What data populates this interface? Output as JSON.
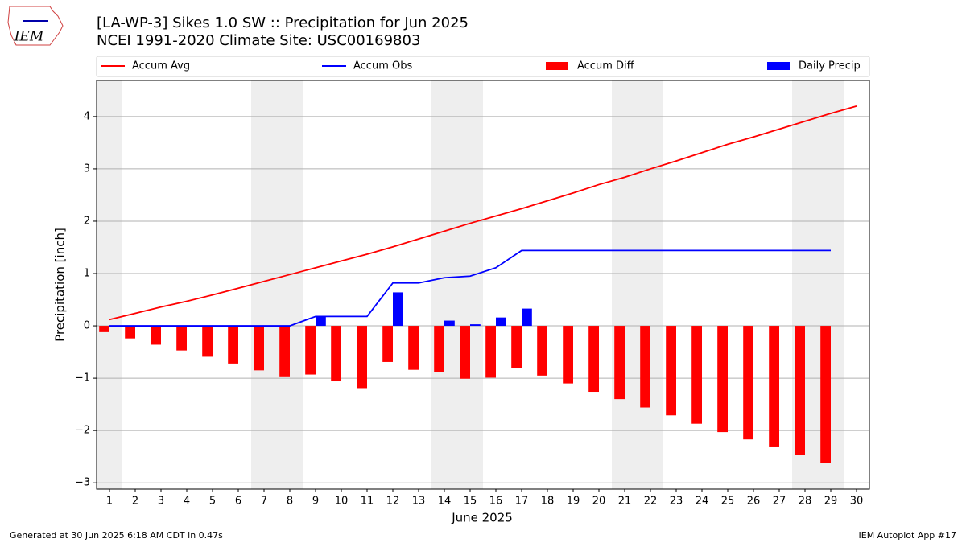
{
  "chart_data": {
    "type": "bar_line",
    "title": "[LA-WP-3] Sikes 1.0 SW :: Precipitation for Jun 2025",
    "subtitle": "NCEI 1991-2020 Climate Site: USC00169803",
    "xlabel": "June 2025",
    "ylabel": "Precipitation [inch]",
    "logo_text": "IEM",
    "footer_left": "Generated at 30 Jun 2025 6:18 AM CDT in 0.47s",
    "footer_right": "IEM Autoplot App #17",
    "x": [
      1,
      2,
      3,
      4,
      5,
      6,
      7,
      8,
      9,
      10,
      11,
      12,
      13,
      14,
      15,
      16,
      17,
      18,
      19,
      20,
      21,
      22,
      23,
      24,
      25,
      26,
      27,
      28,
      29,
      30
    ],
    "series": [
      {
        "name": "Accum Avg",
        "kind": "line",
        "color": "#ff0000",
        "values": [
          0.12,
          0.24,
          0.36,
          0.47,
          0.59,
          0.72,
          0.85,
          0.98,
          1.11,
          1.24,
          1.37,
          1.51,
          1.66,
          1.81,
          1.96,
          2.1,
          2.24,
          2.39,
          2.54,
          2.7,
          2.84,
          3.0,
          3.15,
          3.31,
          3.47,
          3.61,
          3.76,
          3.91,
          4.06,
          4.2
        ]
      },
      {
        "name": "Accum Obs",
        "kind": "line",
        "color": "#0000ff",
        "values": [
          0,
          0,
          0,
          0,
          0,
          0,
          0,
          0,
          0.18,
          0.18,
          0.18,
          0.82,
          0.82,
          0.92,
          0.95,
          1.11,
          1.44,
          1.44,
          1.44,
          1.44,
          1.44,
          1.44,
          1.44,
          1.44,
          1.44,
          1.44,
          1.44,
          1.44,
          1.44,
          null
        ]
      },
      {
        "name": "Accum Diff",
        "kind": "bar",
        "color": "#ff0000",
        "values": [
          -0.12,
          -0.24,
          -0.36,
          -0.47,
          -0.59,
          -0.72,
          -0.85,
          -0.98,
          -0.93,
          -1.06,
          -1.19,
          -0.69,
          -0.84,
          -0.89,
          -1.01,
          -0.99,
          -0.8,
          -0.95,
          -1.1,
          -1.26,
          -1.4,
          -1.56,
          -1.71,
          -1.87,
          -2.03,
          -2.17,
          -2.32,
          -2.47,
          -2.62,
          null
        ]
      },
      {
        "name": "Daily Precip",
        "kind": "bar",
        "color": "#0000ff",
        "values": [
          0,
          0,
          0,
          0,
          0,
          0,
          0,
          0,
          0.18,
          0,
          0,
          0.64,
          0,
          0.1,
          0.03,
          0.16,
          0.33,
          0,
          0,
          0,
          0,
          0,
          0,
          0,
          0,
          0,
          0,
          0,
          0,
          null
        ]
      }
    ],
    "weekend_shading": [
      [
        0.5,
        1.5
      ],
      [
        6.5,
        8.5
      ],
      [
        13.5,
        15.5
      ],
      [
        20.5,
        22.5
      ],
      [
        27.5,
        29.5
      ]
    ],
    "xlim": [
      0.5,
      30.5
    ],
    "xticks": [
      1,
      2,
      3,
      4,
      5,
      6,
      7,
      8,
      9,
      10,
      11,
      12,
      13,
      14,
      15,
      16,
      17,
      18,
      19,
      20,
      21,
      22,
      23,
      24,
      25,
      26,
      27,
      28,
      29,
      30
    ],
    "ylim": [
      -3.12,
      4.69
    ],
    "yticks": [
      -3,
      -2,
      -1,
      0,
      1,
      2,
      3,
      4
    ],
    "grid": true,
    "legend": "top"
  }
}
